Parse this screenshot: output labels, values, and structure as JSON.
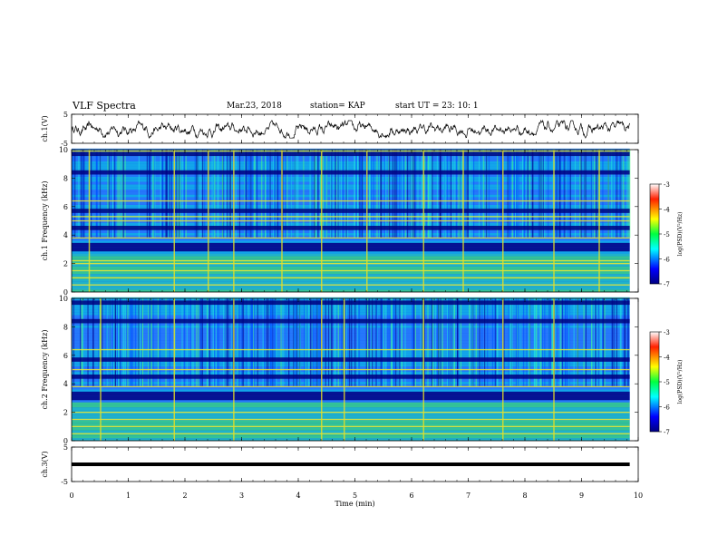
{
  "header": {
    "title": "VLF Spectra",
    "date": "Mar.23, 2018",
    "station": "station= KAP",
    "start": "start UT = 23: 10: 1"
  },
  "chart_data": [
    {
      "type": "line",
      "ylabel": "ch.1(V)",
      "ylim": [
        -5,
        5
      ],
      "yticks": [
        -5,
        5
      ],
      "xlim": [
        0,
        10
      ],
      "note": "noisy waveform around ~0 V"
    },
    {
      "type": "heatmap",
      "ylabel": "ch.1 Frequency (kHz)",
      "ylim": [
        0,
        10
      ],
      "yticks": [
        0,
        2,
        4,
        6,
        8,
        10
      ],
      "xlim": [
        0,
        10
      ],
      "colorbar": {
        "label": "log(PSD)(V²/Hz)",
        "range": [
          -7,
          -3
        ],
        "ticks": [
          -3,
          -4,
          -5,
          -6,
          -7
        ]
      },
      "dark_bands_khz": [
        2.9,
        3.2,
        4.4,
        5.6,
        8.3,
        9.6
      ],
      "bright_bands_khz": [
        0.5,
        1.0,
        1.5,
        2.0,
        2.2,
        3.8,
        5.0,
        5.3,
        6.4,
        9.9
      ],
      "burst_times_min": [
        0.3,
        1.8,
        2.4,
        2.85,
        3.7,
        4.4,
        5.2,
        6.2,
        6.9,
        7.6,
        8.5,
        9.3
      ]
    },
    {
      "type": "heatmap",
      "ylabel": "ch.2 Frequency (kHz)",
      "ylim": [
        0,
        10
      ],
      "yticks": [
        0,
        2,
        4,
        6,
        8,
        10
      ],
      "xlim": [
        0,
        10
      ],
      "colorbar": {
        "label": "log(PSD)(V²/Hz)",
        "range": [
          -7,
          -3
        ],
        "ticks": [
          -3,
          -4,
          -5,
          -6,
          -7
        ]
      },
      "dark_bands_khz": [
        2.9,
        3.2,
        4.4,
        5.6,
        8.3,
        9.6
      ],
      "bright_bands_khz": [
        0.5,
        1.0,
        1.5,
        2.0,
        3.8,
        5.0,
        6.4
      ],
      "burst_times_min": [
        0.5,
        1.8,
        2.85,
        4.4,
        4.8,
        6.2,
        7.6,
        8.5
      ]
    },
    {
      "type": "line",
      "ylabel": "ch.3(V)",
      "ylim": [
        -5,
        5
      ],
      "yticks": [
        -5,
        5
      ],
      "xlim": [
        0,
        10
      ],
      "series": [
        {
          "x": [
            0,
            9.85
          ],
          "y": [
            0,
            0
          ]
        }
      ]
    }
  ],
  "xaxis": {
    "label": "Time  (min)",
    "ticks": [
      0,
      1,
      2,
      3,
      4,
      5,
      6,
      7,
      8,
      9,
      10
    ]
  }
}
